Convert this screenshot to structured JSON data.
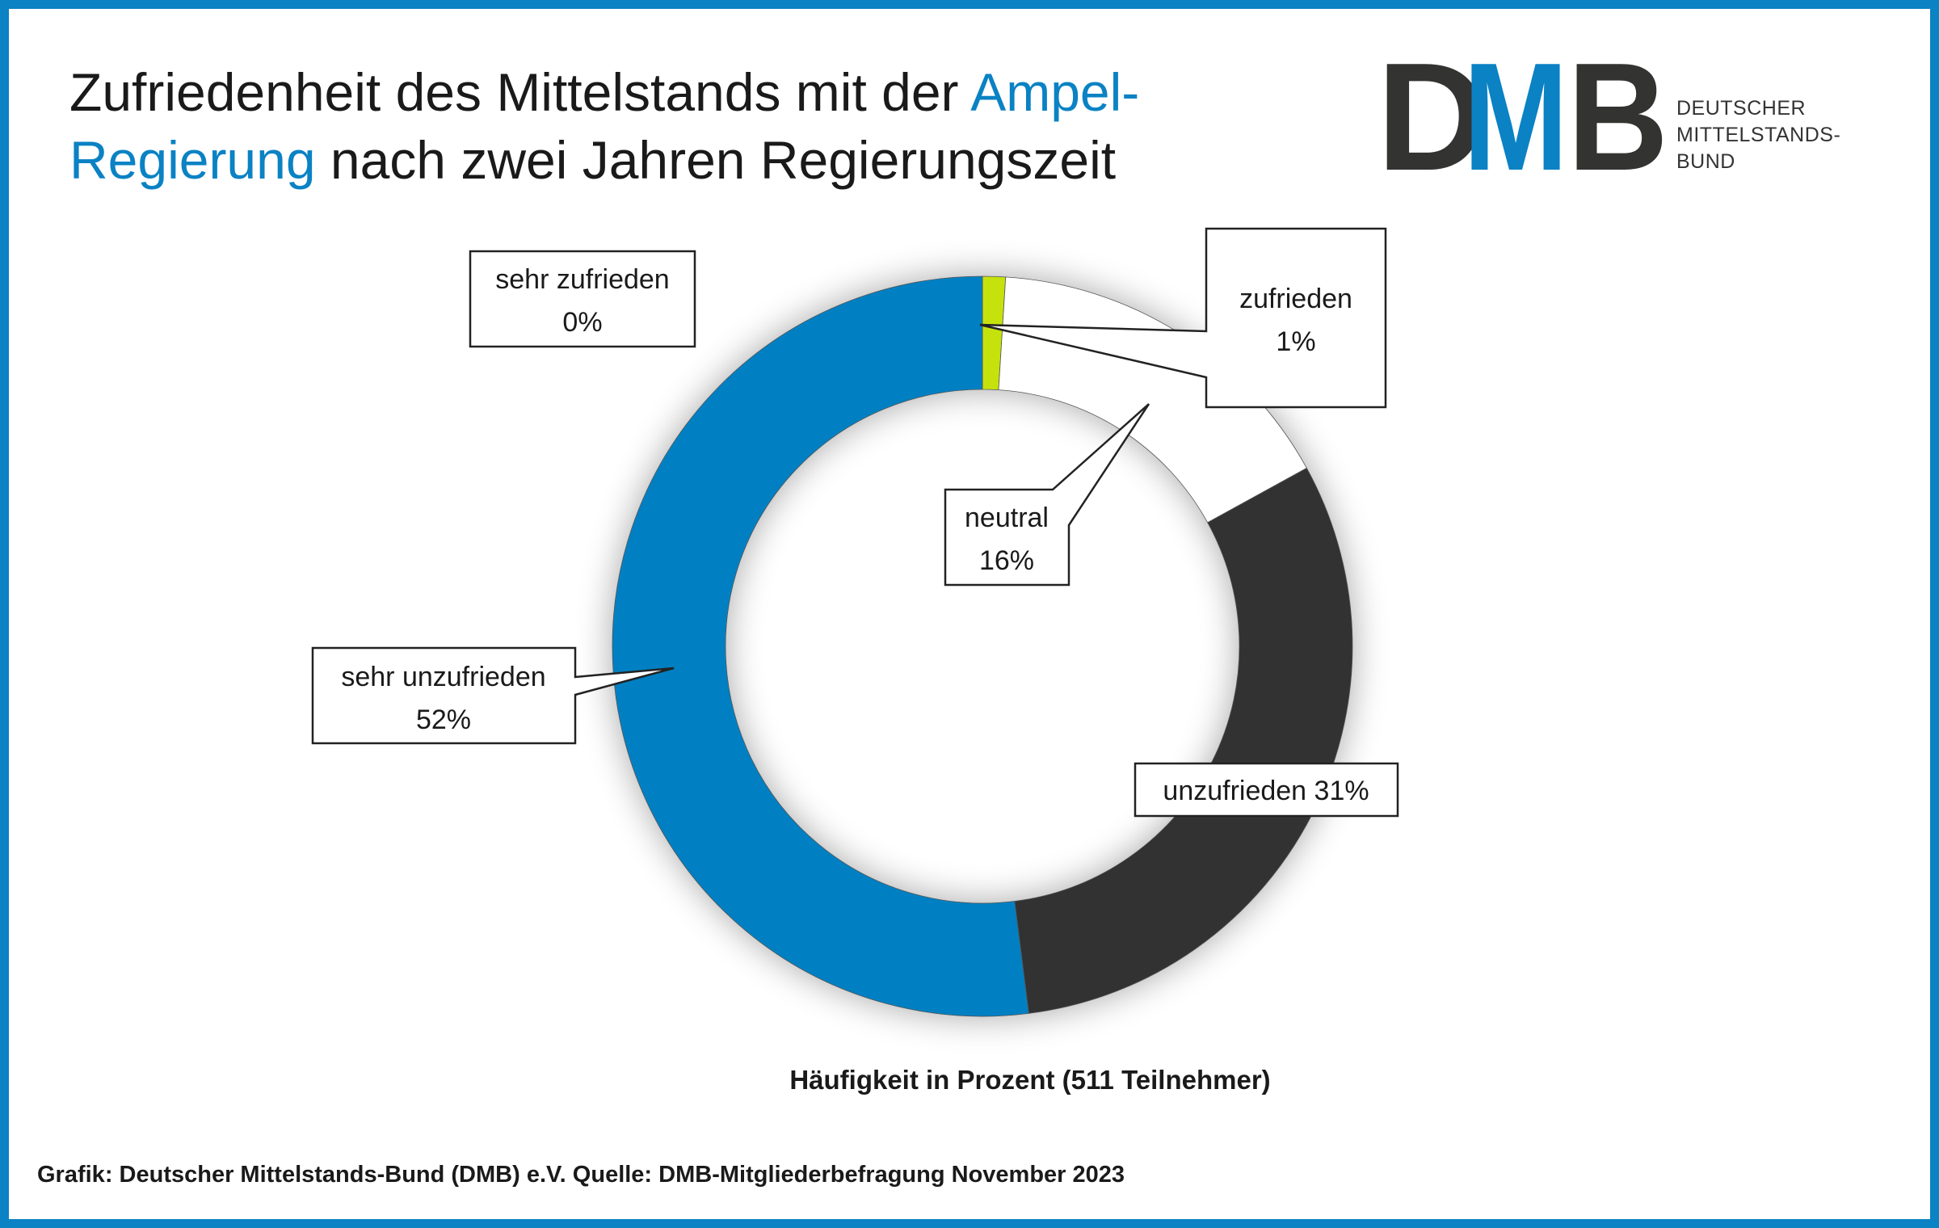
{
  "header": {
    "title_part1": "Zufriedenheit des Mittelstands mit der ",
    "title_highlight": "Ampel-Regierung",
    "title_part2": " nach zwei Jahren Regierungszeit"
  },
  "logo": {
    "letters": [
      "D",
      "M",
      "B"
    ],
    "line1": "DEUTSCHER",
    "line2": "MITTELSTANDS-",
    "line3": "BUND"
  },
  "colors": {
    "accent": "#0a82c4",
    "sehr_unzufrieden": "#0080c3",
    "unzufrieden": "#333331",
    "neutral": "#ffffff",
    "zufrieden": "#c6e20b",
    "sehr_zufrieden": "#9bbb59"
  },
  "chart_data": {
    "type": "pie",
    "subtype": "donut",
    "xlabel": "Häufigkeit in Prozent (511 Teilnehmer)",
    "slices": [
      {
        "label": "sehr zufrieden",
        "value": 0,
        "value_label": "0%"
      },
      {
        "label": "zufrieden",
        "value": 1,
        "value_label": "1%"
      },
      {
        "label": "neutral",
        "value": 16,
        "value_label": "16%"
      },
      {
        "label": "unzufrieden",
        "value": 31,
        "value_label": "31%"
      },
      {
        "label": "sehr unzufrieden",
        "value": 52,
        "value_label": "52%"
      }
    ],
    "unzufrieden_label": "unzufrieden 31%"
  },
  "footer": {
    "source": "Grafik: Deutscher Mittelstands-Bund (DMB) e.V. Quelle: DMB-Mitgliederbefragung November 2023"
  }
}
